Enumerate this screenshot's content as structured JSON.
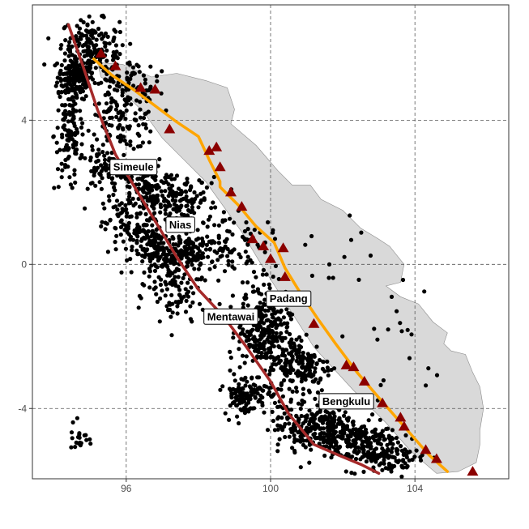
{
  "chart_data": {
    "type": "scatter",
    "xlim": [
      93.4,
      106.6
    ],
    "ylim": [
      -5.95,
      7.2
    ],
    "x_ticks": [
      96,
      100,
      104
    ],
    "y_ticks": [
      4,
      0,
      -4
    ],
    "x_tick_labels": [
      "96",
      "100",
      "104"
    ],
    "y_tick_labels": [
      "4",
      "0",
      "-4"
    ],
    "grid": true,
    "labels": [
      {
        "text": "Simeule",
        "lon": 96.2,
        "lat": 2.7
      },
      {
        "text": "Nias",
        "lon": 97.5,
        "lat": 1.1
      },
      {
        "text": "Padang",
        "lon": 100.5,
        "lat": -0.95
      },
      {
        "text": "Mentawai",
        "lon": 98.9,
        "lat": -1.45
      },
      {
        "text": "Bengkulu",
        "lon": 102.1,
        "lat": -3.8
      }
    ],
    "volcanoes": [
      {
        "lon": 95.3,
        "lat": 5.85
      },
      {
        "lon": 95.7,
        "lat": 5.5
      },
      {
        "lon": 96.4,
        "lat": 4.9
      },
      {
        "lon": 96.8,
        "lat": 4.85
      },
      {
        "lon": 97.2,
        "lat": 3.75
      },
      {
        "lon": 98.3,
        "lat": 3.15
      },
      {
        "lon": 98.5,
        "lat": 3.25
      },
      {
        "lon": 98.6,
        "lat": 2.7
      },
      {
        "lon": 98.9,
        "lat": 2.0
      },
      {
        "lon": 99.2,
        "lat": 1.6
      },
      {
        "lon": 99.5,
        "lat": 0.7
      },
      {
        "lon": 99.8,
        "lat": 0.5
      },
      {
        "lon": 100.0,
        "lat": 0.15
      },
      {
        "lon": 100.35,
        "lat": 0.45
      },
      {
        "lon": 100.4,
        "lat": -0.35
      },
      {
        "lon": 101.2,
        "lat": -1.65
      },
      {
        "lon": 102.1,
        "lat": -2.8
      },
      {
        "lon": 102.3,
        "lat": -2.85
      },
      {
        "lon": 102.6,
        "lat": -3.25
      },
      {
        "lon": 103.1,
        "lat": -3.85
      },
      {
        "lon": 103.6,
        "lat": -4.25
      },
      {
        "lon": 103.7,
        "lat": -4.5
      },
      {
        "lon": 104.3,
        "lat": -5.15
      },
      {
        "lon": 104.6,
        "lat": -5.4
      },
      {
        "lon": 105.6,
        "lat": -5.75
      }
    ],
    "fault_line": [
      {
        "lon": 95.1,
        "lat": 5.7
      },
      {
        "lon": 95.6,
        "lat": 5.25
      },
      {
        "lon": 96.2,
        "lat": 4.85
      },
      {
        "lon": 96.8,
        "lat": 4.4
      },
      {
        "lon": 97.4,
        "lat": 3.95
      },
      {
        "lon": 98.0,
        "lat": 3.55
      },
      {
        "lon": 98.3,
        "lat": 2.9
      },
      {
        "lon": 98.6,
        "lat": 2.3
      },
      {
        "lon": 98.6,
        "lat": 2.15
      },
      {
        "lon": 99.1,
        "lat": 1.65
      },
      {
        "lon": 99.6,
        "lat": 1.05
      },
      {
        "lon": 100.1,
        "lat": 0.6
      },
      {
        "lon": 100.4,
        "lat": -0.1
      },
      {
        "lon": 100.8,
        "lat": -0.75
      },
      {
        "lon": 101.3,
        "lat": -1.5
      },
      {
        "lon": 101.8,
        "lat": -2.2
      },
      {
        "lon": 102.4,
        "lat": -3.0
      },
      {
        "lon": 103.0,
        "lat": -3.7
      },
      {
        "lon": 103.7,
        "lat": -4.5
      },
      {
        "lon": 104.4,
        "lat": -5.3
      },
      {
        "lon": 104.9,
        "lat": -5.75
      }
    ],
    "trench": [
      {
        "lon": 94.4,
        "lat": 6.65
      },
      {
        "lon": 94.8,
        "lat": 5.5
      },
      {
        "lon": 95.2,
        "lat": 4.3
      },
      {
        "lon": 95.7,
        "lat": 3.05
      },
      {
        "lon": 96.2,
        "lat": 2.2
      },
      {
        "lon": 96.8,
        "lat": 1.2
      },
      {
        "lon": 97.4,
        "lat": 0.2
      },
      {
        "lon": 98.0,
        "lat": -0.7
      },
      {
        "lon": 98.7,
        "lat": -1.45
      },
      {
        "lon": 99.3,
        "lat": -2.25
      },
      {
        "lon": 100.0,
        "lat": -3.25
      },
      {
        "lon": 100.5,
        "lat": -4.15
      },
      {
        "lon": 101.2,
        "lat": -5.0
      },
      {
        "lon": 101.9,
        "lat": -5.3
      },
      {
        "lon": 102.5,
        "lat": -5.55
      },
      {
        "lon": 103.0,
        "lat": -5.8
      }
    ],
    "land": [
      {
        "lon": 95.2,
        "lat": 5.6
      },
      {
        "lon": 95.9,
        "lat": 5.55
      },
      {
        "lon": 96.7,
        "lat": 5.2
      },
      {
        "lon": 97.4,
        "lat": 5.3
      },
      {
        "lon": 98.2,
        "lat": 5.1
      },
      {
        "lon": 98.8,
        "lat": 4.9
      },
      {
        "lon": 99.0,
        "lat": 4.3
      },
      {
        "lon": 98.9,
        "lat": 3.9
      },
      {
        "lon": 99.6,
        "lat": 3.3
      },
      {
        "lon": 100.2,
        "lat": 2.6
      },
      {
        "lon": 100.6,
        "lat": 2.2
      },
      {
        "lon": 101.1,
        "lat": 2.2
      },
      {
        "lon": 101.4,
        "lat": 1.8
      },
      {
        "lon": 102.0,
        "lat": 1.5
      },
      {
        "lon": 102.5,
        "lat": 1.0
      },
      {
        "lon": 103.0,
        "lat": 0.7
      },
      {
        "lon": 103.3,
        "lat": 0.5
      },
      {
        "lon": 103.7,
        "lat": 0.0
      },
      {
        "lon": 103.6,
        "lat": -0.5
      },
      {
        "lon": 103.2,
        "lat": -0.6
      },
      {
        "lon": 103.6,
        "lat": -0.9
      },
      {
        "lon": 104.1,
        "lat": -1.1
      },
      {
        "lon": 104.5,
        "lat": -1.6
      },
      {
        "lon": 104.9,
        "lat": -1.9
      },
      {
        "lon": 104.8,
        "lat": -2.2
      },
      {
        "lon": 105.0,
        "lat": -2.4
      },
      {
        "lon": 105.4,
        "lat": -2.5
      },
      {
        "lon": 105.6,
        "lat": -3.0
      },
      {
        "lon": 105.8,
        "lat": -3.4
      },
      {
        "lon": 105.9,
        "lat": -4.0
      },
      {
        "lon": 105.8,
        "lat": -4.6
      },
      {
        "lon": 105.8,
        "lat": -5.0
      },
      {
        "lon": 105.7,
        "lat": -5.5
      },
      {
        "lon": 105.2,
        "lat": -5.75
      },
      {
        "lon": 104.6,
        "lat": -5.8
      },
      {
        "lon": 103.9,
        "lat": -5.2
      },
      {
        "lon": 103.2,
        "lat": -4.4
      },
      {
        "lon": 102.3,
        "lat": -3.5
      },
      {
        "lon": 101.2,
        "lat": -2.3
      },
      {
        "lon": 100.5,
        "lat": -1.2
      },
      {
        "lon": 99.8,
        "lat": -0.1
      },
      {
        "lon": 99.2,
        "lat": 0.9
      },
      {
        "lon": 98.7,
        "lat": 1.6
      },
      {
        "lon": 98.2,
        "lat": 2.3
      },
      {
        "lon": 97.7,
        "lat": 2.8
      },
      {
        "lon": 97.0,
        "lat": 3.5
      },
      {
        "lon": 96.5,
        "lat": 4.2
      },
      {
        "lon": 95.8,
        "lat": 4.9
      },
      {
        "lon": 95.3,
        "lat": 5.2
      }
    ],
    "quake_clusters": [
      {
        "lon": 94.6,
        "lat": 5.2,
        "sx": 0.25,
        "sy": 0.3,
        "n": 180
      },
      {
        "lon": 95.0,
        "lat": 6.2,
        "sx": 0.4,
        "sy": 0.3,
        "n": 120
      },
      {
        "lon": 94.4,
        "lat": 3.6,
        "sx": 0.2,
        "sy": 0.8,
        "n": 110
      },
      {
        "lon": 95.9,
        "lat": 4.0,
        "sx": 0.5,
        "sy": 0.4,
        "n": 120
      },
      {
        "lon": 95.4,
        "lat": 2.6,
        "sx": 0.4,
        "sy": 0.3,
        "n": 80
      },
      {
        "lon": 96.6,
        "lat": 2.1,
        "sx": 0.5,
        "sy": 0.35,
        "n": 150
      },
      {
        "lon": 96.2,
        "lat": 1.0,
        "sx": 0.4,
        "sy": 0.4,
        "n": 110
      },
      {
        "lon": 97.6,
        "lat": 1.6,
        "sx": 0.5,
        "sy": 0.4,
        "n": 120
      },
      {
        "lon": 97.0,
        "lat": 0.3,
        "sx": 0.4,
        "sy": 0.3,
        "n": 150
      },
      {
        "lon": 98.0,
        "lat": 0.3,
        "sx": 0.5,
        "sy": 0.3,
        "n": 130
      },
      {
        "lon": 97.4,
        "lat": -0.9,
        "sx": 0.4,
        "sy": 0.5,
        "n": 80
      },
      {
        "lon": 99.3,
        "lat": 0.7,
        "sx": 0.4,
        "sy": 0.3,
        "n": 40
      },
      {
        "lon": 99.8,
        "lat": -1.9,
        "sx": 0.35,
        "sy": 0.45,
        "n": 220
      },
      {
        "lon": 99.8,
        "lat": -0.8,
        "sx": 0.35,
        "sy": 0.4,
        "n": 60
      },
      {
        "lon": 100.8,
        "lat": -2.8,
        "sx": 0.45,
        "sy": 0.4,
        "n": 180
      },
      {
        "lon": 99.3,
        "lat": -3.6,
        "sx": 0.3,
        "sy": 0.3,
        "n": 120
      },
      {
        "lon": 101.6,
        "lat": -4.6,
        "sx": 0.5,
        "sy": 0.3,
        "n": 200
      },
      {
        "lon": 102.5,
        "lat": -5.0,
        "sx": 0.5,
        "sy": 0.35,
        "n": 180
      },
      {
        "lon": 100.8,
        "lat": -4.4,
        "sx": 0.4,
        "sy": 0.4,
        "n": 100
      },
      {
        "lon": 103.5,
        "lat": -5.3,
        "sx": 0.4,
        "sy": 0.25,
        "n": 70
      },
      {
        "lon": 96.0,
        "lat": 5.1,
        "sx": 0.4,
        "sy": 0.3,
        "n": 60
      },
      {
        "lon": 95.3,
        "lat": 5.6,
        "sx": 0.3,
        "sy": 0.3,
        "n": 50
      },
      {
        "lon": 94.7,
        "lat": -4.8,
        "sx": 0.12,
        "sy": 0.3,
        "n": 20
      },
      {
        "lon": 103.8,
        "lat": -2.5,
        "sx": 0.6,
        "sy": 1.0,
        "n": 18
      },
      {
        "lon": 101.5,
        "lat": 0.5,
        "sx": 0.8,
        "sy": 0.8,
        "n": 15
      }
    ]
  }
}
